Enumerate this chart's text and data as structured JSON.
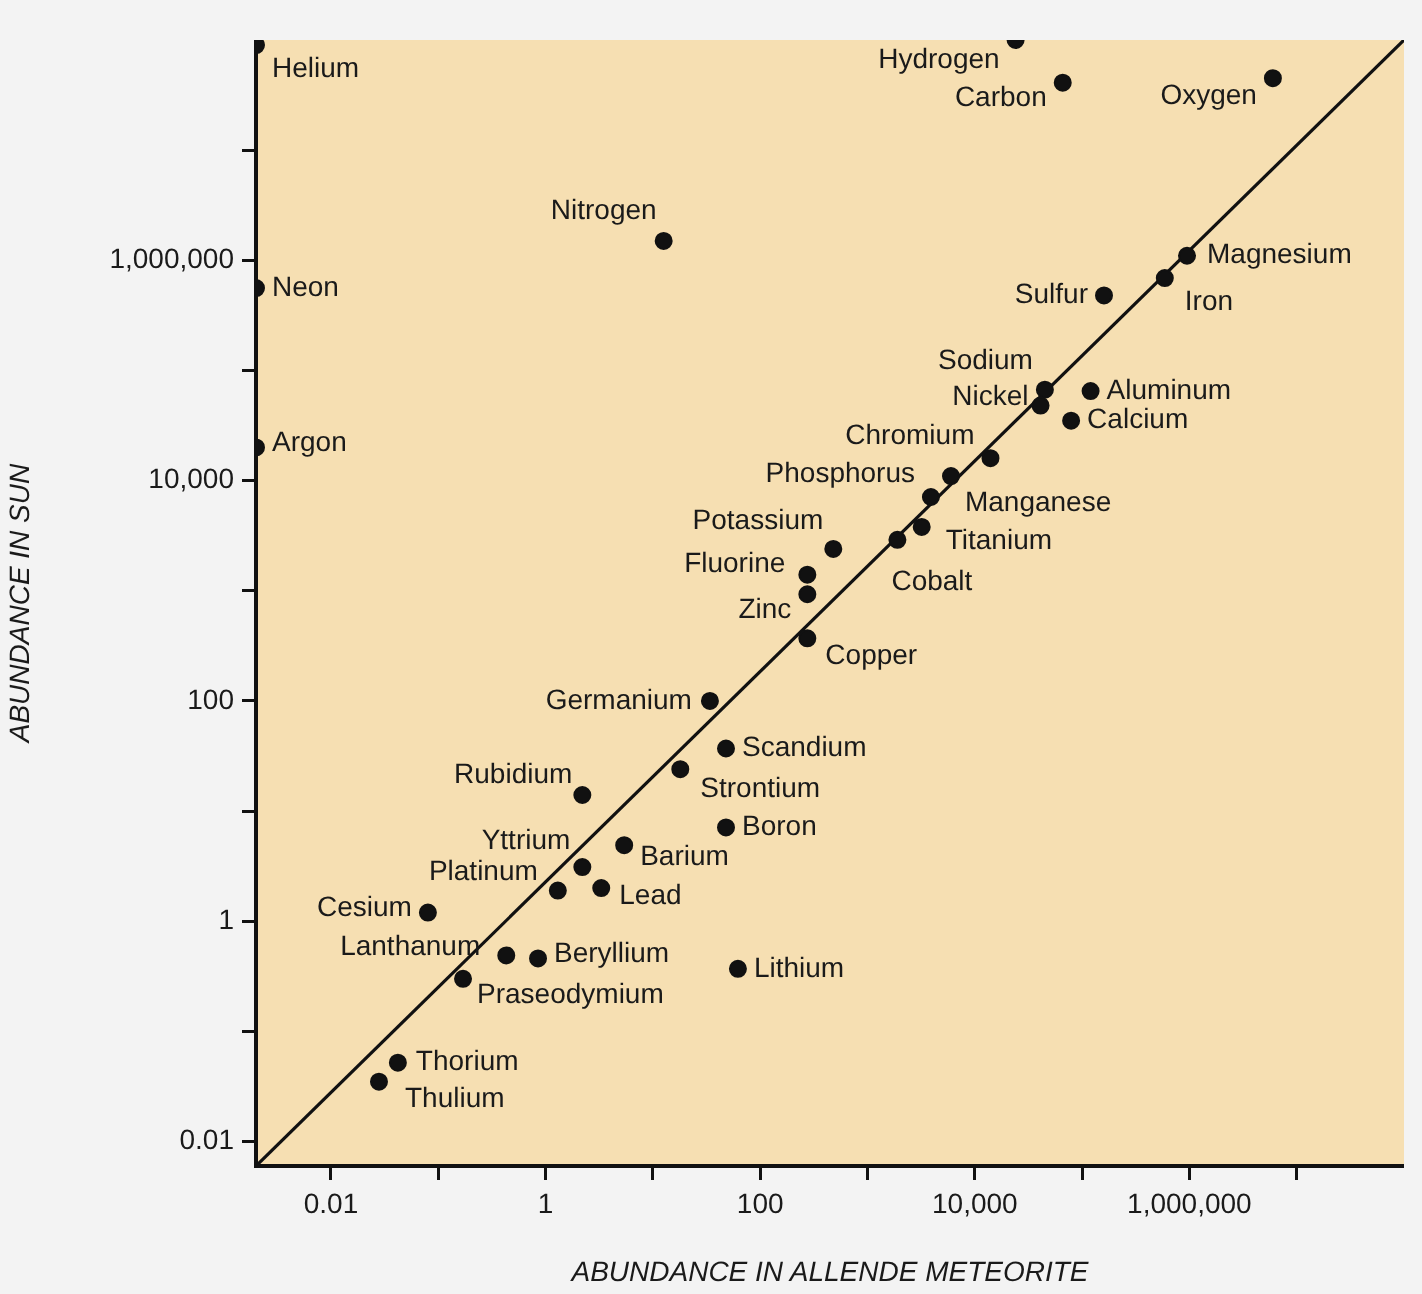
{
  "chart_data": {
    "type": "scatter",
    "xlabel": "ABUNDANCE IN ALLENDE METEORITE",
    "ylabel": "ABUNDANCE IN SUN",
    "log": "xy",
    "grid": false,
    "legend": false,
    "marker": "circle",
    "xlim": [
      0.002,
      100000000
    ],
    "ylim": [
      0.006,
      100000000
    ],
    "xticks": [
      0.01,
      {
        "value": 0.1,
        "label": null
      },
      1,
      {
        "value": 10,
        "label": null
      },
      100,
      {
        "value": 1000,
        "label": null
      },
      {
        "value": 10000,
        "label": "10,000"
      },
      {
        "value": 100000,
        "label": null
      },
      {
        "value": 1000000,
        "label": "1,000,000"
      },
      {
        "value": 10000000,
        "label": null
      }
    ],
    "yticks": [
      0.01,
      {
        "value": 0.1,
        "label": null
      },
      1,
      {
        "value": 10,
        "label": null
      },
      100,
      {
        "value": 1000,
        "label": null
      },
      {
        "value": 10000,
        "label": "10,000"
      },
      {
        "value": 100000,
        "label": null
      },
      {
        "value": 1000000,
        "label": "1,000,000"
      },
      {
        "value": 10000000,
        "label": null
      }
    ],
    "series": [
      {
        "color": "#111111",
        "x": [
          0.002,
          24000,
          66000,
          6000000,
          12.6,
          0.002,
          0.002,
          950000,
          590000,
          160000,
          45000,
          41000,
          120000,
          79000,
          14000,
          6000,
          3900,
          3200,
          1900,
          480,
          275,
          275,
          275,
          34,
          48,
          18,
          2.2,
          48,
          5.4,
          2.2,
          1.3,
          3.3,
          0.08,
          0.43,
          0.85,
          0.17,
          62,
          0.042,
          0.028
        ],
        "values": [
          90000000,
          100000000,
          41000000,
          45000000,
          1500000,
          560000,
          20000,
          1100000,
          690000,
          480000,
          67000,
          48000,
          65000,
          35000,
          16000,
          11000,
          7100,
          3800,
          2900,
          2400,
          1400,
          930,
          370,
          100,
          37,
          24,
          14,
          7.1,
          4.9,
          3.1,
          1.9,
          2.0,
          1.2,
          0.49,
          0.46,
          0.3,
          0.37,
          0.052,
          0.035
        ]
      },
      {
        "type": "line",
        "marker": "none",
        "color": "#111111",
        "x": [
          0.002,
          100000000
        ],
        "values": [
          0.006,
          100000000
        ]
      }
    ],
    "annotations": [
      {
        "text": "Helium",
        "x": 0.002,
        "y": 90000000
      },
      {
        "text": "Hydrogen",
        "x": 24000,
        "y": 100000000
      },
      {
        "text": "Carbon",
        "x": 66000,
        "y": 41000000
      },
      {
        "text": "Oxygen",
        "x": 6000000,
        "y": 45000000
      },
      {
        "text": "Nitrogen",
        "x": 12.6,
        "y": 1500000
      },
      {
        "text": "Neon",
        "x": 0.002,
        "y": 560000
      },
      {
        "text": "Argon",
        "x": 0.002,
        "y": 20000
      },
      {
        "text": "Magnesium",
        "x": 950000,
        "y": 1100000
      },
      {
        "text": "Iron",
        "x": 590000,
        "y": 690000
      },
      {
        "text": "Sulfur",
        "x": 160000,
        "y": 480000
      },
      {
        "text": "Sodium",
        "x": 45000,
        "y": 67000
      },
      {
        "text": "Nickel",
        "x": 41000,
        "y": 48000
      },
      {
        "text": "Aluminum",
        "x": 120000,
        "y": 65000
      },
      {
        "text": "Calcium",
        "x": 79000,
        "y": 35000
      },
      {
        "text": "Chromium",
        "x": 14000,
        "y": 16000
      },
      {
        "text": "Phosphorus",
        "x": 6000,
        "y": 11000
      },
      {
        "text": "Manganese",
        "x": 3900,
        "y": 7100
      },
      {
        "text": "Titanium",
        "x": 3200,
        "y": 3800
      },
      {
        "text": "Cobalt",
        "x": 1900,
        "y": 2900
      },
      {
        "text": "Potassium",
        "x": 480,
        "y": 2400
      },
      {
        "text": "Fluorine",
        "x": 275,
        "y": 1400
      },
      {
        "text": "Zinc",
        "x": 275,
        "y": 930
      },
      {
        "text": "Copper",
        "x": 275,
        "y": 370
      },
      {
        "text": "Germanium",
        "x": 34,
        "y": 100
      },
      {
        "text": "Scandium",
        "x": 48,
        "y": 37
      },
      {
        "text": "Strontium",
        "x": 18,
        "y": 24
      },
      {
        "text": "Rubidium",
        "x": 2.2,
        "y": 14
      },
      {
        "text": "Boron",
        "x": 48,
        "y": 7.1
      },
      {
        "text": "Barium",
        "x": 5.4,
        "y": 4.9
      },
      {
        "text": "Yttrium",
        "x": 2.2,
        "y": 3.1
      },
      {
        "text": "Platinum",
        "x": 1.3,
        "y": 1.9
      },
      {
        "text": "Lead",
        "x": 3.3,
        "y": 2.0
      },
      {
        "text": "Cesium",
        "x": 0.08,
        "y": 1.2
      },
      {
        "text": "Lanthanum",
        "x": 0.43,
        "y": 0.49
      },
      {
        "text": "Beryllium",
        "x": 0.85,
        "y": 0.46
      },
      {
        "text": "Praseodymium",
        "x": 0.17,
        "y": 0.3
      },
      {
        "text": "Lithium",
        "x": 62,
        "y": 0.37
      },
      {
        "text": "Thorium",
        "x": 0.042,
        "y": 0.052
      },
      {
        "text": "Thulium",
        "x": 0.028,
        "y": 0.035
      }
    ]
  }
}
